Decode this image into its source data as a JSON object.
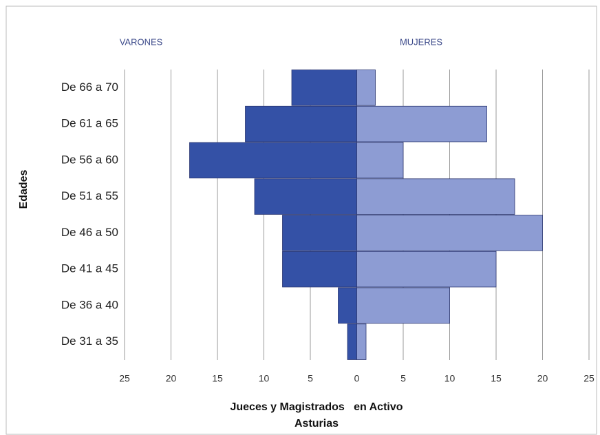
{
  "chart_data": {
    "type": "pyramid",
    "categories": [
      "De 66 a 70",
      "De 61 a 65",
      "De 56 a 60",
      "De 51 a 55",
      "De 46 a 50",
      "De 41 a 45",
      "De 36 a 40",
      "De 31 a 35"
    ],
    "series": [
      {
        "name": "VARONES",
        "color": "#3451a6",
        "values": [
          -7,
          -12,
          -18,
          -11,
          -8,
          -8,
          -2,
          -1
        ]
      },
      {
        "name": "MUJERES",
        "color": "#8d9cd3",
        "values": [
          2,
          14,
          5,
          17,
          20,
          15,
          10,
          1
        ]
      }
    ],
    "xlim": [
      -25,
      25
    ],
    "xticks": [
      {
        "value": -25,
        "label": "25"
      },
      {
        "value": -20,
        "label": "20"
      },
      {
        "value": -15,
        "label": "15"
      },
      {
        "value": -10,
        "label": "10"
      },
      {
        "value": -5,
        "label": "5"
      },
      0,
      5,
      10,
      15,
      20,
      25
    ],
    "ylabel": "Edades",
    "xlabel": [
      "Jueces y Magistrados   en Activo",
      "Asturias"
    ],
    "grid": true
  }
}
